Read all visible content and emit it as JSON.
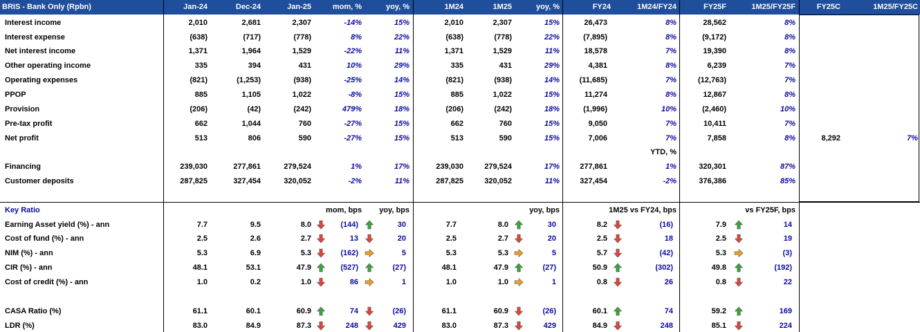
{
  "header": {
    "title": "BRIS - Bank Only (Rpbn)",
    "cols": [
      "Jan-24",
      "Dec-24",
      "Jan-25",
      "mom, %",
      "yoy, %",
      "1M24",
      "1M25",
      "yoy, %",
      "FY24",
      "1M24/FY24",
      "FY25F",
      "1M25/FY25F",
      "FY25C",
      "1M25/FY25C"
    ]
  },
  "pl_rows": [
    {
      "label": "Interest income",
      "jan24": "2,010",
      "dec24": "2,681",
      "jan25": "2,307",
      "mom": "-14%",
      "yoy": "15%",
      "m124": "2,010",
      "m125": "2,307",
      "yoy2": "15%",
      "fy24": "26,473",
      "r1": "8%",
      "fy25f": "28,562",
      "r2": "8%"
    },
    {
      "label": "Interest expense",
      "jan24": "(638)",
      "dec24": "(717)",
      "jan25": "(778)",
      "mom": "8%",
      "yoy": "22%",
      "m124": "(638)",
      "m125": "(778)",
      "yoy2": "22%",
      "fy24": "(7,895)",
      "r1": "8%",
      "fy25f": "(9,172)",
      "r2": "8%"
    },
    {
      "label": "Net interest income",
      "jan24": "1,371",
      "dec24": "1,964",
      "jan25": "1,529",
      "mom": "-22%",
      "yoy": "11%",
      "m124": "1,371",
      "m125": "1,529",
      "yoy2": "11%",
      "fy24": "18,578",
      "r1": "7%",
      "fy25f": "19,390",
      "r2": "8%"
    },
    {
      "label": "Other operating income",
      "jan24": "335",
      "dec24": "394",
      "jan25": "431",
      "mom": "10%",
      "yoy": "29%",
      "m124": "335",
      "m125": "431",
      "yoy2": "29%",
      "fy24": "4,381",
      "r1": "8%",
      "fy25f": "6,239",
      "r2": "7%"
    },
    {
      "label": "Operating expenses",
      "jan24": "(821)",
      "dec24": "(1,253)",
      "jan25": "(938)",
      "mom": "-25%",
      "yoy": "14%",
      "m124": "(821)",
      "m125": "(938)",
      "yoy2": "14%",
      "fy24": "(11,685)",
      "r1": "7%",
      "fy25f": "(12,763)",
      "r2": "7%"
    },
    {
      "label": "PPOP",
      "jan24": "885",
      "dec24": "1,105",
      "jan25": "1,022",
      "mom": "-8%",
      "yoy": "15%",
      "m124": "885",
      "m125": "1,022",
      "yoy2": "15%",
      "fy24": "11,274",
      "r1": "8%",
      "fy25f": "12,867",
      "r2": "8%"
    },
    {
      "label": "Provision",
      "jan24": "(206)",
      "dec24": "(42)",
      "jan25": "(242)",
      "mom": "479%",
      "yoy": "18%",
      "m124": "(206)",
      "m125": "(242)",
      "yoy2": "18%",
      "fy24": "(1,996)",
      "r1": "10%",
      "fy25f": "(2,460)",
      "r2": "10%"
    },
    {
      "label": "Pre-tax profit",
      "jan24": "662",
      "dec24": "1,044",
      "jan25": "760",
      "mom": "-27%",
      "yoy": "15%",
      "m124": "662",
      "m125": "760",
      "yoy2": "15%",
      "fy24": "9,050",
      "r1": "7%",
      "fy25f": "10,411",
      "r2": "7%"
    },
    {
      "label": "Net profit",
      "jan24": "513",
      "dec24": "806",
      "jan25": "590",
      "mom": "-27%",
      "yoy": "15%",
      "m124": "513",
      "m125": "590",
      "yoy2": "15%",
      "fy24": "7,006",
      "r1": "7%",
      "fy25f": "7,858",
      "r2": "8%",
      "fy25c": "8,292",
      "r3": "7%"
    }
  ],
  "ytd_label": "YTD, %",
  "bs_rows": [
    {
      "label": "Financing",
      "jan24": "239,030",
      "dec24": "277,861",
      "jan25": "279,524",
      "mom": "1%",
      "yoy": "17%",
      "m124": "239,030",
      "m125": "279,524",
      "yoy2": "17%",
      "fy24": "277,861",
      "r1": "1%",
      "fy25f": "320,301",
      "r2": "87%"
    },
    {
      "label": "Customer deposits",
      "jan24": "287,825",
      "dec24": "327,454",
      "jan25": "320,052",
      "mom": "-2%",
      "yoy": "11%",
      "m124": "287,825",
      "m125": "320,052",
      "yoy2": "11%",
      "fy24": "327,454",
      "r1": "-2%",
      "fy25f": "376,386",
      "r2": "85%"
    }
  ],
  "ratio_header": {
    "title": "Key Ratio",
    "mom": "mom, bps",
    "yoy": "yoy, bps",
    "yoy2": "yoy, bps",
    "vfy24": "1M25 vs FY24, bps",
    "vfy25": "vs FY25F, bps"
  },
  "ratio_rows": [
    {
      "label": "Earning Asset yield (%) - ann",
      "jan24": "7.7",
      "dec24": "9.5",
      "jan25": "8.0",
      "a1": "down-red",
      "mom": "(144)",
      "a2": "up-green",
      "yoy": "30",
      "m124": "7.7",
      "m125": "8.0",
      "a3": "up-green",
      "yoy2": "30",
      "fy24": "8.2",
      "a4": "down-red",
      "vfy24": "(16)",
      "fy25f": "7.9",
      "a5": "up-green",
      "vfy25": "14"
    },
    {
      "label": "Cost of fund (%) - ann",
      "jan24": "2.5",
      "dec24": "2.6",
      "jan25": "2.7",
      "a1": "down-red",
      "mom": "13",
      "a2": "down-red",
      "yoy": "20",
      "m124": "2.5",
      "m125": "2.7",
      "a3": "down-red",
      "yoy2": "20",
      "fy24": "2.5",
      "a4": "down-red",
      "vfy24": "18",
      "fy25f": "2.5",
      "a5": "down-red",
      "vfy25": "19"
    },
    {
      "label": "NIM (%) - ann",
      "jan24": "5.3",
      "dec24": "6.9",
      "jan25": "5.3",
      "a1": "down-red",
      "mom": "(162)",
      "a2": "right-yellow",
      "yoy": "5",
      "m124": "5.3",
      "m125": "5.3",
      "a3": "right-yellow",
      "yoy2": "5",
      "fy24": "5.7",
      "a4": "down-red",
      "vfy24": "(42)",
      "fy25f": "5.3",
      "a5": "right-yellow",
      "vfy25": "(3)"
    },
    {
      "label": "CIR (%) - ann",
      "jan24": "48.1",
      "dec24": "53.1",
      "jan25": "47.9",
      "a1": "up-green",
      "mom": "(527)",
      "a2": "up-green",
      "yoy": "(27)",
      "m124": "48.1",
      "m125": "47.9",
      "a3": "up-green",
      "yoy2": "(27)",
      "fy24": "50.9",
      "a4": "up-green",
      "vfy24": "(302)",
      "fy25f": "49.8",
      "a5": "up-green",
      "vfy25": "(192)"
    },
    {
      "label": "Cost of credit (%) - ann",
      "jan24": "1.0",
      "dec24": "0.2",
      "jan25": "1.0",
      "a1": "down-red",
      "mom": "86",
      "a2": "right-yellow",
      "yoy": "1",
      "m124": "1.0",
      "m125": "1.0",
      "a3": "right-yellow",
      "yoy2": "1",
      "fy24": "0.8",
      "a4": "down-red",
      "vfy24": "26",
      "fy25f": "0.8",
      "a5": "down-red",
      "vfy25": "22"
    },
    {
      "label": "CASA Ratio (%)",
      "jan24": "61.1",
      "dec24": "60.1",
      "jan25": "60.9",
      "a1": "up-green",
      "mom": "74",
      "a2": "down-red",
      "yoy": "(26)",
      "m124": "61.1",
      "m125": "60.9",
      "a3": "down-red",
      "yoy2": "(26)",
      "fy24": "60.1",
      "a4": "up-green",
      "vfy24": "74",
      "fy25f": "59.2",
      "a5": "up-green",
      "vfy25": "169"
    },
    {
      "label": "LDR (%)",
      "jan24": "83.0",
      "dec24": "84.9",
      "jan25": "87.3",
      "a1": "down-red",
      "mom": "248",
      "a2": "down-red",
      "yoy": "429",
      "m124": "83.0",
      "m125": "87.3",
      "a3": "down-red",
      "yoy2": "429",
      "fy24": "84.9",
      "a4": "down-red",
      "vfy24": "248",
      "fy25f": "85.1",
      "a5": "down-red",
      "vfy25": "224"
    }
  ],
  "colors": {
    "header_bg": "#1f4e9c",
    "accent": "#0a0aa0",
    "up": "#3aa53a",
    "down": "#e0443a",
    "flat": "#f0a020"
  }
}
